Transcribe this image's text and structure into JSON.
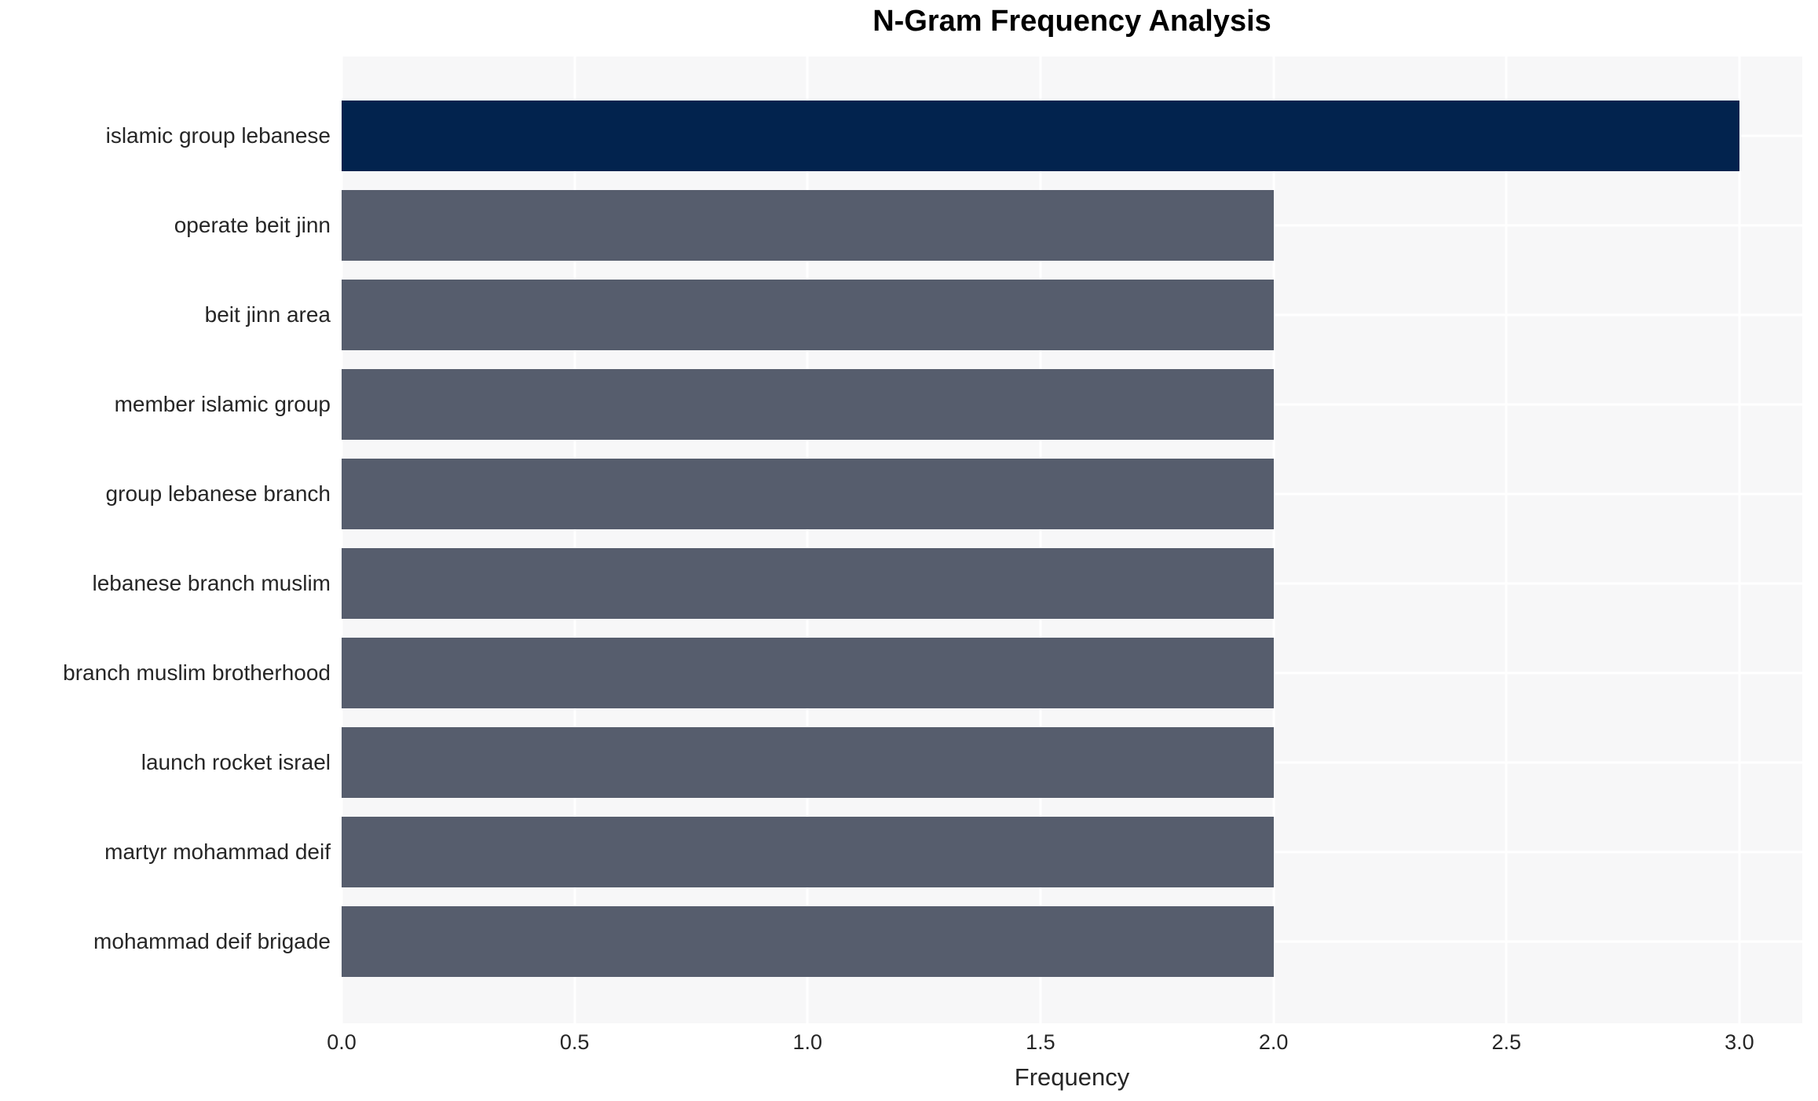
{
  "chart_data": {
    "type": "bar",
    "orientation": "horizontal",
    "title": "N-Gram Frequency Analysis",
    "xlabel": "Frequency",
    "ylabel": "",
    "categories": [
      "islamic group lebanese",
      "operate beit jinn",
      "beit jinn area",
      "member islamic group",
      "group lebanese branch",
      "lebanese branch muslim",
      "branch muslim brotherhood",
      "launch rocket israel",
      "martyr mohammad deif",
      "mohammad deif brigade"
    ],
    "values": [
      3,
      2,
      2,
      2,
      2,
      2,
      2,
      2,
      2,
      2
    ],
    "bar_colors": [
      "#02234e",
      "#565d6d",
      "#565d6d",
      "#565d6d",
      "#565d6d",
      "#565d6d",
      "#565d6d",
      "#565d6d",
      "#565d6d",
      "#565d6d"
    ],
    "xticks": [
      0,
      0.5,
      1,
      1.5,
      2,
      2.5,
      3
    ],
    "xtick_labels": [
      "0.0",
      "0.5",
      "1.0",
      "1.5",
      "2.0",
      "2.5",
      "3.0"
    ],
    "xlim": [
      0,
      3.135
    ],
    "grid": true,
    "legend": false,
    "colors": {
      "highlight_bar": "#02234e",
      "default_bar": "#565d6d",
      "plot_background": "#f7f7f8",
      "gridline": "#ffffff",
      "text": "#262626",
      "title_text": "#000000"
    }
  }
}
